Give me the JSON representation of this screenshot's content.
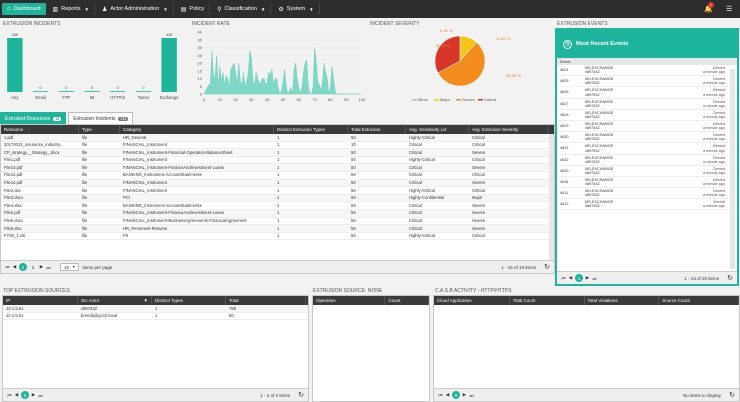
{
  "nav": {
    "items": [
      {
        "label": "Dashboard",
        "icon": "home-icon",
        "glyph": "⌂",
        "active": true,
        "caret": false
      },
      {
        "label": "Reports",
        "icon": "bar-chart-icon",
        "glyph": "▥",
        "active": false,
        "caret": true
      },
      {
        "label": "Actor Administration",
        "icon": "user-icon",
        "glyph": "♟",
        "active": false,
        "caret": true
      },
      {
        "label": "Policy",
        "icon": "policy-icon",
        "glyph": "▤",
        "active": false,
        "caret": false
      },
      {
        "label": "Classification",
        "icon": "search-icon",
        "glyph": "⚲",
        "active": false,
        "caret": true
      },
      {
        "label": "System",
        "icon": "gear-icon",
        "glyph": "⚙",
        "active": false,
        "caret": true
      }
    ],
    "notifications": "1"
  },
  "sections": {
    "extrusion_incidents": "EXTRUSION INCIDENTS",
    "incident_rate": "INCIDENT RATE",
    "incident_severity": "INCIDENT SEVERITY",
    "extrusion_events": "EXTRUSION EVENTS",
    "top_sources": "TOP EXTRUSION SOURCES",
    "source_none": "EXTRUSION SOURCE: NONE",
    "casb": "C.A.S.B ACTIVITY - HTTP/HTTPS"
  },
  "chart_data": [
    {
      "type": "bar",
      "title": "EXTRUSION INCIDENTS",
      "categories": [
        "Any",
        "Email",
        "FTP",
        "IM",
        "HTTP/S",
        "Tamer",
        "Exchange"
      ],
      "values": [
        439,
        0,
        0,
        0,
        0,
        0,
        439
      ],
      "value_labels": [
        "439",
        "0",
        "0",
        "0",
        "0",
        "0",
        "439"
      ],
      "ylim": [
        0,
        439
      ]
    },
    {
      "type": "area",
      "title": "INCIDENT RATE",
      "x": [
        0,
        1,
        2,
        3,
        4,
        5,
        6,
        7,
        8,
        9,
        10,
        11,
        12,
        13,
        14,
        15,
        16,
        17,
        18,
        19,
        20,
        21,
        22,
        23,
        24,
        25,
        26,
        27,
        28,
        29,
        30,
        31,
        32,
        33,
        34,
        35,
        36,
        37,
        38,
        39,
        40,
        41,
        42,
        43,
        44,
        45,
        46,
        47,
        48,
        49,
        50,
        51,
        52,
        53,
        54,
        55,
        56,
        57,
        58,
        59,
        60,
        61,
        62,
        63,
        64,
        65,
        66,
        67,
        68,
        69,
        70,
        71,
        72,
        73,
        74,
        75,
        76,
        77,
        78,
        79,
        80,
        81,
        82,
        83,
        84,
        85,
        86,
        87,
        88,
        89,
        90,
        91,
        92,
        93,
        94,
        95,
        96,
        97,
        98,
        99
      ],
      "values": [
        0,
        2,
        4,
        6,
        6,
        28,
        12,
        10,
        25,
        5,
        18,
        8,
        14,
        6,
        12,
        10,
        4,
        16,
        18,
        20,
        14,
        6,
        20,
        8,
        6,
        14,
        4,
        8,
        14,
        28,
        24,
        8,
        6,
        14,
        10,
        6,
        8,
        10,
        10,
        6,
        8,
        14,
        12,
        16,
        6,
        10,
        10,
        4,
        0,
        2,
        8,
        16,
        6,
        0,
        2,
        4,
        0,
        16,
        20,
        10,
        4,
        0,
        4,
        14,
        20,
        22,
        6,
        0,
        0,
        4,
        30,
        22,
        8,
        6,
        2,
        8,
        20,
        14,
        10,
        0,
        4,
        18,
        10,
        2,
        0,
        0,
        0,
        0,
        0,
        0,
        0,
        0,
        0,
        0,
        0,
        0,
        0,
        0,
        0,
        0
      ],
      "yticks": [
        "0",
        "5",
        "10",
        "15",
        "20",
        "25",
        "30",
        "35",
        "40"
      ],
      "xticks": [
        "0",
        "10",
        "20",
        "30",
        "40",
        "50",
        "60",
        "70",
        "80",
        "90",
        "100"
      ],
      "ylim": [
        0,
        40
      ],
      "xlim": [
        0,
        100
      ]
    },
    {
      "type": "pie",
      "title": "INCIDENT SEVERITY",
      "slices": [
        {
          "name": "Minor",
          "value": 0.0,
          "label": "0.00 %",
          "color": "#b8b8b8"
        },
        {
          "name": "Major",
          "value": 11.6,
          "label": "11.60 %",
          "color": "#f5c518"
        },
        {
          "name": "Severe",
          "value": 55.56,
          "label": "55.56 %",
          "color": "#f28c1c"
        },
        {
          "name": "Critical",
          "value": 32.84,
          "label": "32.84 %",
          "color": "#d9362b"
        }
      ]
    }
  ],
  "tabs": [
    {
      "label": "Extruded Resources",
      "count": "19",
      "active": true
    },
    {
      "label": "Extrusion Incidents",
      "count": "439",
      "active": false
    }
  ],
  "resources": {
    "columns": [
      "Resource",
      "Type",
      "Category",
      "Distinct Extrusion Types",
      "Total Extrusion",
      "Avg. Sensitivity Lvl",
      "Avg. Extrusion Severity"
    ],
    "rows": [
      [
        "1.pdf",
        "file",
        "HR_General",
        "1",
        "50",
        "Highly-Critical",
        "Critical"
      ],
      [
        "20170013_insurance_industry...",
        "file",
        "FINANCIAL_Instrument",
        "1",
        "10",
        "Critical",
        "Critical"
      ],
      [
        "CP_strategy__Strategy_.docx",
        "file",
        "FINANCIAL_Instrument-Financial-Operation-BalanceSheet",
        "1",
        "50",
        "Critical",
        "Severe"
      ],
      [
        "File1.pdf",
        "file",
        "FINANCIAL_Instrument",
        "1",
        "50",
        "Highly-Critical",
        "Critical"
      ],
      [
        "File10.pdf",
        "file",
        "FINANCIAL_Instrument-FinanceAndInvestment-Loans",
        "1",
        "50",
        "Critical",
        "Severe"
      ],
      [
        "File12.pdf",
        "file",
        "BANKING_Instrument-AccountStatements",
        "1",
        "50",
        "Critical",
        "Critical"
      ],
      [
        "File14.pdf",
        "file",
        "FINANCIAL_Instrument",
        "1",
        "50",
        "Critical",
        "Severe"
      ],
      [
        "File2.doc",
        "file",
        "FINANCIAL_Instrument",
        "1",
        "50",
        "Highly-Critical",
        "Critical"
      ],
      [
        "File3.docx",
        "file",
        "PCI",
        "1",
        "50",
        "Highly-Confidential",
        "Major"
      ],
      [
        "File4.xlsx",
        "file",
        "BANKING_Instrument-AccountStatements",
        "1",
        "50",
        "Critical",
        "Severe"
      ],
      [
        "File5.pdf",
        "file",
        "FINANCIAL_Instrument-FinanceAndInvestment-Loans",
        "1",
        "50",
        "Critical",
        "Severe"
      ],
      [
        "File6.docx",
        "file",
        "FINANCIAL_Instrument-BusinessAgreements-FinancialAgreement",
        "1",
        "50",
        "Critical",
        "Severe"
      ],
      [
        "File8.xlsx",
        "file",
        "HR_Personnel-Resume",
        "1",
        "50",
        "Critical",
        "Severe"
      ],
      [
        "FY00_1.xls",
        "file",
        "PII",
        "1",
        "50",
        "Highly-Critical",
        "Critical"
      ]
    ],
    "pager": {
      "pages": [
        "1",
        "2"
      ],
      "per_page": "15",
      "per_page_label": "items per page",
      "info": "1 - 15 of 19 items"
    }
  },
  "events": {
    "title": "Most Recent Events",
    "column": "Event",
    "rows": [
      {
        "id": "4624",
        "src1": "MS-EXCHANGE",
        "src2": "x897432",
        "s1": "Denied",
        "s2": "a minute ago"
      },
      {
        "id": "4625",
        "src1": "MS-EXCHANGE",
        "src2": "x897432",
        "s1": "Denied",
        "s2": "a minute ago"
      },
      {
        "id": "4626",
        "src1": "MS-EXCHANGE",
        "src2": "x897432",
        "s1": "Denied",
        "s2": "a minute ago"
      },
      {
        "id": "4627",
        "src1": "MS-EXCHANGE",
        "src2": "x897432",
        "s1": "Denied",
        "s2": "a minute ago"
      },
      {
        "id": "4628",
        "src1": "MS-EXCHANGE",
        "src2": "x897432",
        "s1": "Denied",
        "s2": "a minute ago"
      },
      {
        "id": "4629",
        "src1": "MS-EXCHANGE",
        "src2": "x897432",
        "s1": "Denied",
        "s2": "a minute ago"
      },
      {
        "id": "4630",
        "src1": "MS-EXCHANGE",
        "src2": "x897432",
        "s1": "Denied",
        "s2": "a minute ago"
      },
      {
        "id": "4631",
        "src1": "MS-EXCHANGE",
        "src2": "x897432",
        "s1": "Denied",
        "s2": "a minute ago"
      },
      {
        "id": "4632",
        "src1": "MS-EXCHANGE",
        "src2": "x897432",
        "s1": "Denied",
        "s2": "a minute ago"
      },
      {
        "id": "4633",
        "src1": "MS-EXCHANGE",
        "src2": "x897432",
        "s1": "Denied",
        "s2": "a minute ago"
      },
      {
        "id": "4634",
        "src1": "MS-EXCHANGE",
        "src2": "x897432",
        "s1": "Denied",
        "s2": "a minute ago"
      },
      {
        "id": "4611",
        "src1": "MS-EXCHANGE",
        "src2": "x897432",
        "s1": "Denied",
        "s2": "a minute ago"
      },
      {
        "id": "4612",
        "src1": "MS-EXCHANGE",
        "src2": "x897432",
        "s1": "Denied",
        "s2": "a minute ago"
      }
    ],
    "pager": {
      "page": "1",
      "info": "1 - 13 of 20 items"
    }
  },
  "top_sources": {
    "columns": [
      "IP",
      "Src Actor",
      "Distinct Types",
      "Total"
    ],
    "rows": [
      [
        "10.1.5.61",
        "x897432",
        "1",
        "785"
      ],
      [
        "10.1.5.61",
        "brenda@gc10.local",
        "1",
        "50"
      ]
    ],
    "pager": {
      "page": "0",
      "info": "1 - 2 of 2 items"
    }
  },
  "source_none": {
    "columns": [
      "Operation",
      "Count"
    ]
  },
  "casb": {
    "columns": [
      "Cloud Application",
      "Total Count",
      "Total Violations",
      "Source Count"
    ],
    "pager": {
      "page": "0",
      "info": "No items to display"
    }
  }
}
